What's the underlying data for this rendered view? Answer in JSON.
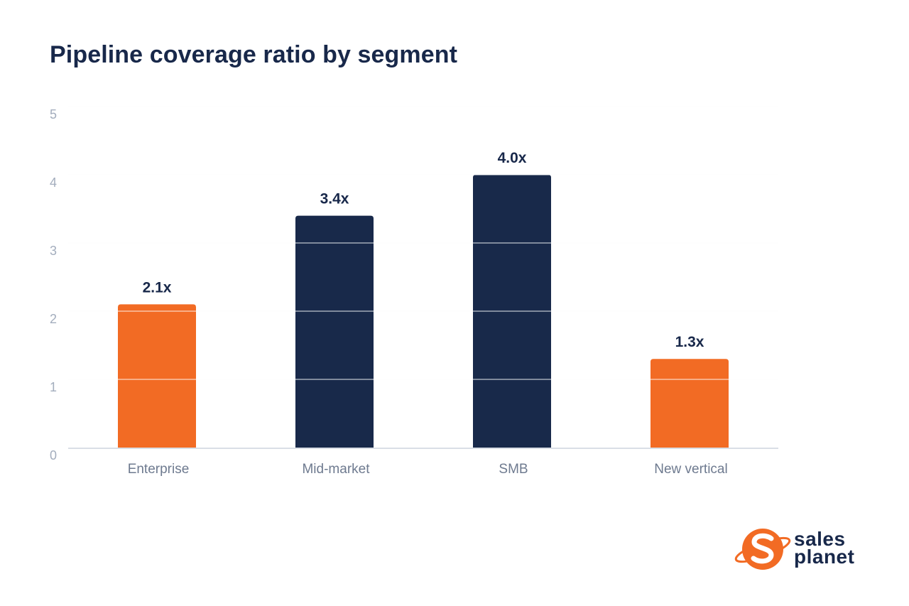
{
  "title": "Pipeline coverage ratio by segment",
  "colors": {
    "orange": "#f26b24",
    "navy": "#18294a",
    "grid": "#e9ecf1",
    "axis": "#d9dee6",
    "text_dark": "#18284a",
    "tick": "#a3adbd",
    "category": "#6e7a8f"
  },
  "chart_data": {
    "type": "bar",
    "title": "Pipeline coverage ratio by segment",
    "xlabel": "",
    "ylabel": "",
    "ylim": [
      0,
      5
    ],
    "yticks": [
      0,
      1,
      2,
      3,
      4,
      5
    ],
    "grid": true,
    "categories": [
      "Enterprise",
      "Mid-market",
      "SMB",
      "New vertical"
    ],
    "values": [
      2.1,
      3.4,
      4.0,
      1.3
    ],
    "data_labels": [
      "2.1x",
      "3.4x",
      "4.0x",
      "1.3x"
    ],
    "bar_colors": [
      "#f26b24",
      "#18294a",
      "#18294a",
      "#f26b24"
    ]
  },
  "logo": {
    "line1": "sales",
    "line2": "planet",
    "icon": "sales-planet-logo-icon"
  }
}
